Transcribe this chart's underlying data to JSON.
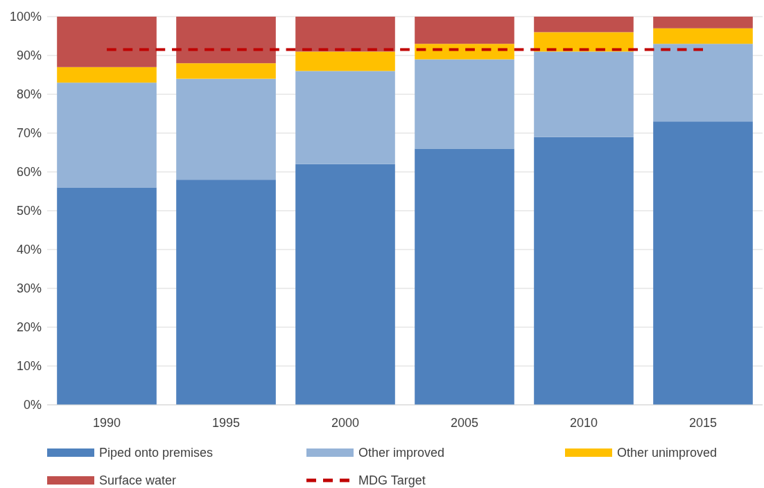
{
  "chart_data": {
    "type": "bar",
    "stacked": true,
    "categories": [
      "1990",
      "1995",
      "2000",
      "2005",
      "2010",
      "2015"
    ],
    "series": [
      {
        "name": "Piped onto premises",
        "color": "#4f81bd",
        "values": [
          56,
          58,
          62,
          66,
          69,
          73
        ]
      },
      {
        "name": "Other improved",
        "color": "#95b3d7",
        "values": [
          27,
          26,
          24,
          23,
          22,
          20
        ]
      },
      {
        "name": "Other unimproved",
        "color": "#ffc000",
        "values": [
          4,
          4,
          5,
          4,
          5,
          4
        ]
      },
      {
        "name": "Surface water",
        "color": "#c0504d",
        "values": [
          13,
          12,
          9,
          7,
          4,
          3
        ]
      },
      {
        "name": "MDG Target",
        "type": "line",
        "color": "#c00000",
        "line_style": "dashed",
        "marker": "none",
        "values": [
          91.5,
          91.5,
          91.5,
          91.5,
          91.5,
          91.5
        ]
      }
    ],
    "ylim": [
      0,
      100
    ],
    "yticks": [
      {
        "value": 0,
        "label": "0%"
      },
      {
        "value": 10,
        "label": "10%"
      },
      {
        "value": 20,
        "label": "20%"
      },
      {
        "value": 30,
        "label": "30%"
      },
      {
        "value": 40,
        "label": "40%"
      },
      {
        "value": 50,
        "label": "50%"
      },
      {
        "value": 60,
        "label": "60%"
      },
      {
        "value": 70,
        "label": "70%"
      },
      {
        "value": 80,
        "label": "80%"
      },
      {
        "value": 90,
        "label": "90%"
      },
      {
        "value": 100,
        "label": "100%"
      }
    ],
    "grid": "y",
    "legend": "bottom"
  }
}
